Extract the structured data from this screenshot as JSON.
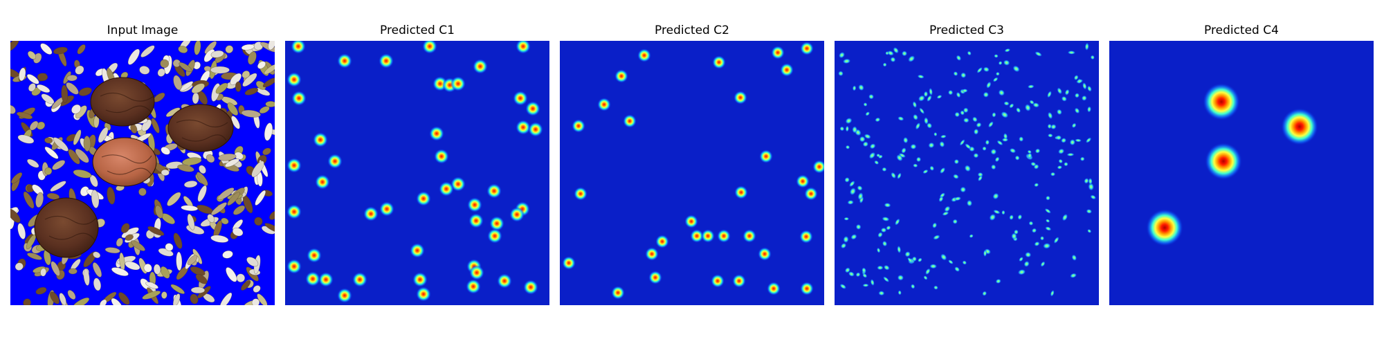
{
  "figure": {
    "colors": {
      "background": "#ffffff",
      "heatmap_base": "#0a1fc8",
      "input_background": "#0000ff"
    },
    "panels": [
      {
        "title": "Input Image",
        "kind": "photo",
        "icon": "grain-photo"
      },
      {
        "title": "Predicted C1",
        "kind": "density-heatmap",
        "colormap": "jet"
      },
      {
        "title": "Predicted C2",
        "kind": "density-heatmap",
        "colormap": "jet"
      },
      {
        "title": "Predicted C3",
        "kind": "density-heatmap",
        "colormap": "jet"
      },
      {
        "title": "Predicted C4",
        "kind": "density-heatmap",
        "colormap": "jet"
      }
    ]
  }
}
